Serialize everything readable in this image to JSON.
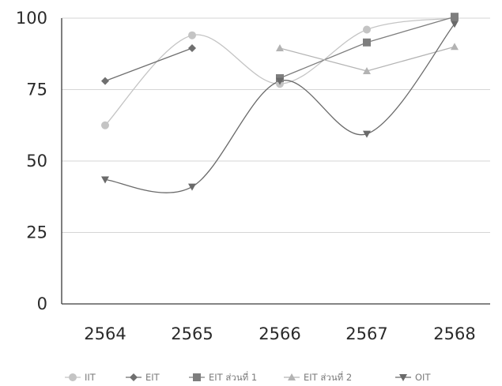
{
  "chart_data": {
    "type": "line",
    "categories": [
      "2564",
      "2565",
      "2566",
      "2567",
      "2568"
    ],
    "ylim": [
      0,
      100
    ],
    "yticks": [
      "0",
      "25",
      "50",
      "75",
      "100"
    ],
    "grid": true,
    "legend_position": "bottom",
    "series": [
      {
        "name": "IIT",
        "values": [
          62.5,
          94,
          77,
          96,
          100
        ],
        "color": "#c4c4c4",
        "marker": "circle",
        "smooth": true
      },
      {
        "name": "EIT",
        "values": [
          78,
          89.5,
          null,
          null,
          null
        ],
        "color": "#6f6f6f",
        "marker": "diamond",
        "smooth": false
      },
      {
        "name": "EIT ส่วนที่ 1",
        "values": [
          null,
          null,
          79,
          91.5,
          100.5
        ],
        "color": "#7e7e7e",
        "marker": "square",
        "smooth": false
      },
      {
        "name": "EIT ส่วนที่ 2",
        "values": [
          null,
          null,
          89.5,
          81.5,
          90
        ],
        "color": "#b3b3b3",
        "marker": "triangle-up",
        "smooth": false
      },
      {
        "name": "OIT",
        "values": [
          43.5,
          41,
          78,
          59.5,
          98
        ],
        "color": "#6a6a6a",
        "marker": "triangle-down",
        "smooth": true
      }
    ]
  }
}
